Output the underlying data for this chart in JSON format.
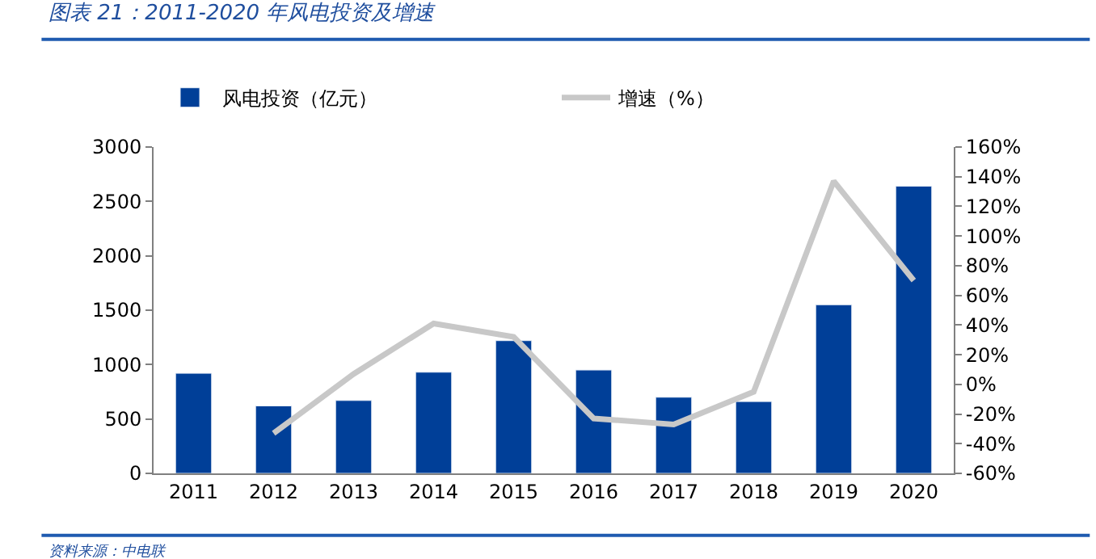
{
  "chart_data": {
    "type": "bar",
    "title": "图表 21：2011-2020 年风电投资及增速",
    "categories": [
      "2011",
      "2012",
      "2013",
      "2014",
      "2015",
      "2016",
      "2017",
      "2018",
      "2019",
      "2020"
    ],
    "series": [
      {
        "name": "风电投资（亿元）",
        "color": "#003f98",
        "values": [
          920,
          620,
          670,
          930,
          1220,
          950,
          700,
          660,
          1550,
          2640
        ]
      },
      {
        "name": "增速（%）",
        "type": "line",
        "axis": "y2",
        "color": "#c8c8c8",
        "values": [
          null,
          -33,
          7,
          41,
          32,
          -23,
          -27,
          -5,
          137,
          70
        ]
      }
    ],
    "ylim": [
      0,
      3000
    ],
    "yticks": [
      0,
      500,
      1000,
      1500,
      2000,
      2500,
      3000
    ],
    "y2lim": [
      -60,
      160
    ],
    "y2ticks": [
      {
        "value": -60,
        "label": "-60%"
      },
      {
        "value": -40,
        "label": "-40%"
      },
      {
        "value": -20,
        "label": "-20%"
      },
      {
        "value": 0,
        "label": "0%"
      },
      {
        "value": 20,
        "label": "20%"
      },
      {
        "value": 40,
        "label": "40%"
      },
      {
        "value": 60,
        "label": "60%"
      },
      {
        "value": 80,
        "label": "80%"
      },
      {
        "value": 100,
        "label": "100%"
      },
      {
        "value": 120,
        "label": "120%"
      },
      {
        "value": 140,
        "label": "140%"
      },
      {
        "value": 160,
        "label": "160%"
      }
    ],
    "legend": "top",
    "annotations": [
      "资料来源：中电联"
    ]
  }
}
